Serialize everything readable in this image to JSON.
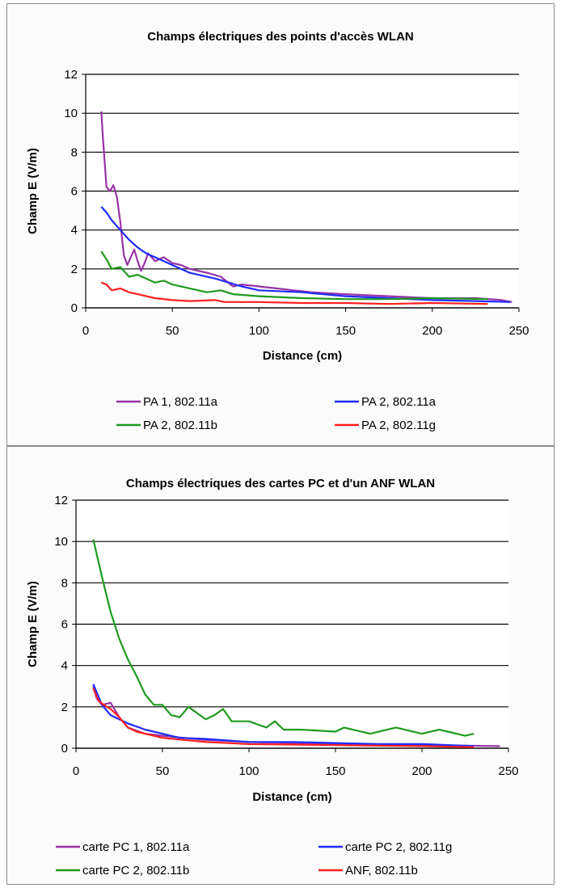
{
  "chart_data": [
    {
      "type": "line",
      "title": "Champs électriques des points d'accès WLAN",
      "xlabel": "Distance (cm)",
      "ylabel": "Champ E (V/m)",
      "xlim": [
        0,
        250
      ],
      "ylim": [
        0,
        12
      ],
      "xticks": [
        0,
        50,
        100,
        150,
        200,
        250
      ],
      "yticks": [
        0,
        2,
        4,
        6,
        8,
        10,
        12
      ],
      "grid": "horizontal",
      "legend_position": "bottom",
      "series": [
        {
          "name": "PA 1, 802.11a",
          "color": "#9933a6",
          "x": [
            9,
            10,
            12,
            14,
            16,
            18,
            20,
            22,
            24,
            26,
            28,
            30,
            32,
            34,
            36,
            40,
            45,
            50,
            55,
            60,
            70,
            78,
            85,
            90,
            100,
            110,
            120,
            130,
            150,
            175,
            200,
            225,
            240,
            246
          ],
          "y": [
            10.1,
            8.7,
            6.2,
            6.0,
            6.3,
            5.7,
            4.4,
            2.7,
            2.2,
            2.6,
            3.0,
            2.4,
            1.9,
            2.3,
            2.8,
            2.4,
            2.6,
            2.3,
            2.2,
            2.0,
            1.8,
            1.6,
            1.1,
            1.2,
            1.1,
            1.0,
            0.9,
            0.8,
            0.7,
            0.6,
            0.5,
            0.5,
            0.4,
            0.3
          ]
        },
        {
          "name": "PA 2, 802.11a",
          "color": "#1f2bff",
          "x": [
            9,
            12,
            15,
            20,
            25,
            30,
            35,
            40,
            50,
            60,
            75,
            90,
            100,
            125,
            150,
            175,
            200,
            225,
            245
          ],
          "y": [
            5.2,
            4.9,
            4.5,
            4.0,
            3.5,
            3.1,
            2.8,
            2.6,
            2.2,
            1.8,
            1.5,
            1.1,
            0.9,
            0.8,
            0.6,
            0.5,
            0.4,
            0.35,
            0.3
          ]
        },
        {
          "name": "PA 2, 802.11b",
          "color": "#1e9a1e",
          "x": [
            9,
            12,
            15,
            20,
            25,
            30,
            35,
            40,
            45,
            50,
            60,
            70,
            78,
            85,
            100,
            125,
            150,
            175,
            200,
            232
          ],
          "y": [
            2.9,
            2.5,
            2.0,
            2.1,
            1.6,
            1.7,
            1.5,
            1.3,
            1.4,
            1.2,
            1.0,
            0.8,
            0.9,
            0.7,
            0.6,
            0.5,
            0.45,
            0.45,
            0.5,
            0.45
          ]
        },
        {
          "name": "PA 2, 802.11g",
          "color": "#ff1f1f",
          "x": [
            9,
            12,
            15,
            20,
            25,
            30,
            40,
            50,
            60,
            75,
            80,
            100,
            125,
            150,
            175,
            200,
            232
          ],
          "y": [
            1.3,
            1.2,
            0.9,
            1.0,
            0.8,
            0.7,
            0.5,
            0.4,
            0.35,
            0.4,
            0.3,
            0.3,
            0.25,
            0.25,
            0.2,
            0.25,
            0.2
          ]
        }
      ]
    },
    {
      "type": "line",
      "title": "Champs électriques des cartes PC et d'un ANF WLAN",
      "xlabel": "Distance (cm)",
      "ylabel": "Champ E (V/m)",
      "xlim": [
        0,
        250
      ],
      "ylim": [
        0,
        12
      ],
      "xticks": [
        0,
        50,
        100,
        150,
        200,
        250
      ],
      "yticks": [
        0,
        2,
        4,
        6,
        8,
        10,
        12
      ],
      "grid": "horizontal",
      "legend_position": "bottom",
      "series": [
        {
          "name": "carte PC 1, 802.11a",
          "color": "#9933a6",
          "x": [
            10,
            12,
            15,
            20,
            25,
            30,
            40,
            50,
            75,
            100,
            150,
            200,
            245
          ],
          "y": [
            3.0,
            2.4,
            2.1,
            2.2,
            1.5,
            1.0,
            0.7,
            0.6,
            0.4,
            0.3,
            0.2,
            0.15,
            0.1
          ]
        },
        {
          "name": "carte PC 2, 802.11g",
          "color": "#1f2bff",
          "x": [
            10,
            15,
            20,
            30,
            40,
            50,
            60,
            75,
            100,
            125,
            150,
            175,
            200,
            230
          ],
          "y": [
            3.1,
            2.1,
            1.6,
            1.2,
            0.9,
            0.7,
            0.5,
            0.45,
            0.3,
            0.3,
            0.25,
            0.2,
            0.2,
            0.1
          ]
        },
        {
          "name": "carte PC 2, 802.11b",
          "color": "#1e9a1e",
          "x": [
            10,
            15,
            20,
            25,
            30,
            35,
            40,
            45,
            50,
            55,
            60,
            65,
            70,
            75,
            80,
            85,
            90,
            100,
            110,
            115,
            120,
            130,
            150,
            155,
            170,
            185,
            200,
            210,
            225,
            230
          ],
          "y": [
            10.1,
            8.3,
            6.6,
            5.3,
            4.3,
            3.5,
            2.6,
            2.1,
            2.1,
            1.6,
            1.5,
            2.0,
            1.7,
            1.4,
            1.6,
            1.9,
            1.3,
            1.3,
            1.0,
            1.3,
            0.9,
            0.9,
            0.8,
            1.0,
            0.7,
            1.0,
            0.7,
            0.9,
            0.6,
            0.7
          ]
        },
        {
          "name": "ANF, 802.11b",
          "color": "#ff1f1f",
          "x": [
            10,
            13,
            16,
            20,
            25,
            30,
            35,
            40,
            50,
            75,
            100,
            150,
            200,
            230
          ],
          "y": [
            2.9,
            2.3,
            2.1,
            1.9,
            1.5,
            1.0,
            0.8,
            0.7,
            0.5,
            0.3,
            0.2,
            0.15,
            0.1,
            0.05
          ]
        }
      ]
    }
  ]
}
